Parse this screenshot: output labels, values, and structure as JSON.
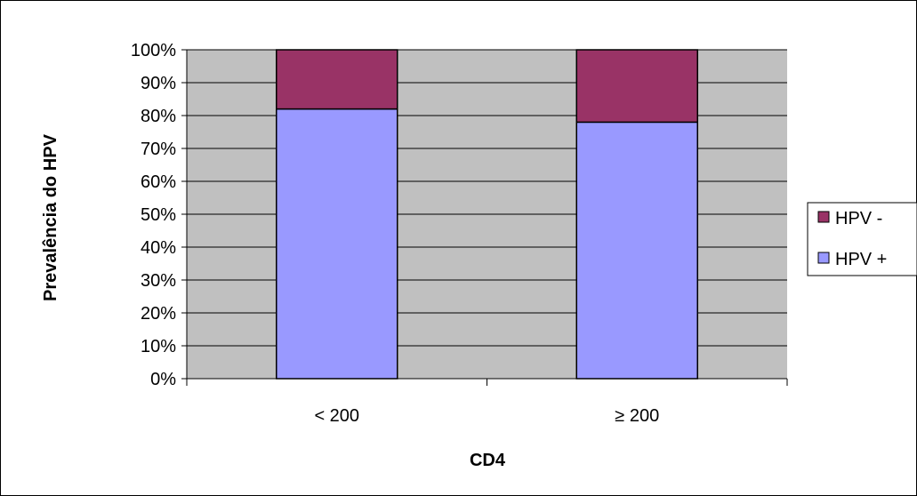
{
  "chart_data": {
    "type": "bar",
    "stacked": true,
    "percent": true,
    "categories": [
      "< 200",
      "≥ 200"
    ],
    "series": [
      {
        "name": "HPV +",
        "values": [
          82,
          78
        ],
        "color": "#9999ff"
      },
      {
        "name": "HPV -",
        "values": [
          18,
          22
        ],
        "color": "#993366"
      }
    ],
    "xlabel": "CD4",
    "ylabel": "Prevalência do HPV",
    "ylim": [
      0,
      100
    ],
    "yticks": [
      "0%",
      "10%",
      "20%",
      "30%",
      "40%",
      "50%",
      "60%",
      "70%",
      "80%",
      "90%",
      "100%"
    ],
    "grid": true,
    "legend": {
      "placement": "right",
      "entries": [
        "HPV -",
        "HPV +"
      ]
    },
    "colors": {
      "plot_background": "#c0c0c0",
      "gridline": "#000000",
      "bar_border": "#000000"
    }
  }
}
